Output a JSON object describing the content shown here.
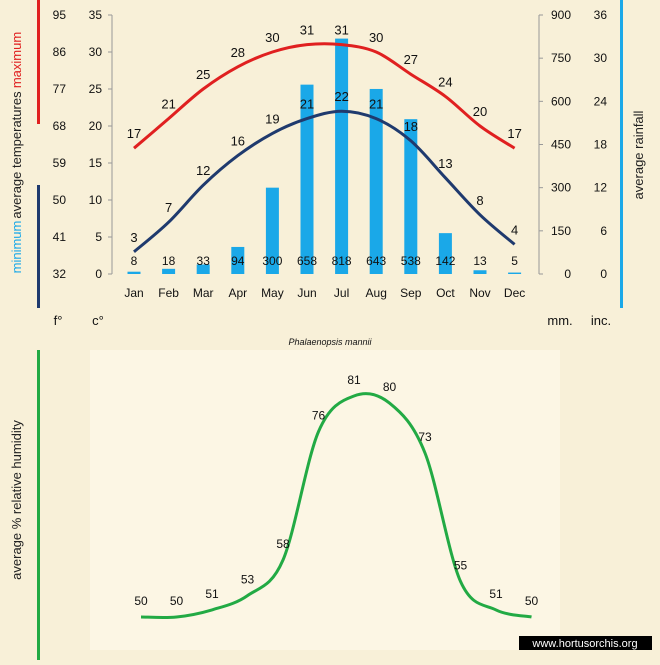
{
  "chart_data": [
    {
      "type": "line+bar",
      "title": "",
      "categories": [
        "Jan",
        "Feb",
        "Mar",
        "Apr",
        "May",
        "Jun",
        "Jul",
        "Aug",
        "Sep",
        "Oct",
        "Nov",
        "Dec"
      ],
      "temperature_axis": {
        "celsius_ticks": [
          0,
          5,
          10,
          15,
          20,
          25,
          30,
          35
        ],
        "fahrenheit_ticks": [
          32,
          41,
          50,
          59,
          68,
          77,
          86,
          95
        ],
        "celsius_unit": "c°",
        "fahrenheit_unit": "f°",
        "ylim": [
          0,
          35
        ]
      },
      "rainfall_axis": {
        "mm_ticks": [
          0,
          150,
          300,
          450,
          600,
          750,
          900
        ],
        "inch_ticks": [
          0,
          6,
          12,
          18,
          24,
          30,
          36
        ],
        "mm_unit": "mm.",
        "inch_unit": "inc.",
        "ylim": [
          0,
          900
        ]
      },
      "labels": {
        "temperatures": "average  temperatures",
        "maximum": "maximum",
        "minimum": "minimum",
        "rainfall": "average rainfall"
      },
      "series": [
        {
          "name": "maximum",
          "color": "#e02020",
          "values": [
            17,
            21,
            25,
            28,
            30,
            31,
            31,
            30,
            27,
            24,
            20,
            17
          ]
        },
        {
          "name": "minimum",
          "color": "#1f3a6e",
          "values": [
            3,
            7,
            12,
            16,
            19,
            21,
            22,
            21,
            18,
            13,
            8,
            4
          ]
        },
        {
          "name": "rainfall",
          "color": "#1aa8e8",
          "values": [
            8,
            18,
            33,
            94,
            300,
            658,
            818,
            643,
            538,
            142,
            13,
            5
          ]
        }
      ],
      "grid": false
    },
    {
      "type": "line",
      "title": "Phalaenopsis mannii",
      "categories": [
        "Jan",
        "Feb",
        "Mar",
        "Apr",
        "May",
        "Jun",
        "Jul",
        "Aug",
        "Sep",
        "Oct",
        "Nov",
        "Dec"
      ],
      "ylabel": "average %  relative humidity",
      "series": [
        {
          "name": "relative humidity",
          "color": "#22aa44",
          "values": [
            50,
            50,
            51,
            53,
            58,
            76,
            81,
            80,
            73,
            55,
            51,
            50
          ]
        }
      ],
      "grid": false
    }
  ],
  "watermark": "www.hortusorchis.org",
  "colors": {
    "background": "#f8f0d8",
    "panel": "#fbf5e2",
    "maximum_bar": "#e02020",
    "minimum_bar": "#1f3a6e",
    "rainfall_bar": "#1aa8e8",
    "humidity_bar": "#22aa44"
  }
}
